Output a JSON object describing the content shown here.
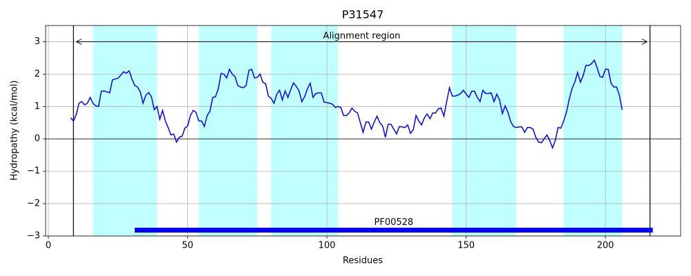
{
  "chart_data": {
    "type": "line",
    "title": "P31547",
    "xlabel": "Residues",
    "ylabel": "Hydropathy (kcal/mol)",
    "xlim": [
      -1,
      227
    ],
    "ylim": [
      -3,
      3.5
    ],
    "xticks": [
      0,
      50,
      100,
      150,
      200
    ],
    "yticks": [
      {
        "value": -3,
        "label": "−3"
      },
      {
        "value": -2,
        "label": "−2"
      },
      {
        "value": -1,
        "label": "−1"
      },
      0,
      1,
      2,
      3
    ],
    "grid": true,
    "regions": [
      [
        16,
        39
      ],
      [
        54,
        75
      ],
      [
        80,
        104
      ],
      [
        145,
        168
      ],
      [
        185,
        206
      ]
    ],
    "region_color": "#c0ffff",
    "vlines": [
      9,
      216
    ],
    "hline": 0,
    "arrow": {
      "label": "Alignment region",
      "x": [
        10,
        215
      ],
      "y": 3
    },
    "domain": {
      "label": "PF00528",
      "x": [
        31,
        217
      ],
      "y": -2.82,
      "color": "#0000ff"
    },
    "x": [
      8,
      9,
      10,
      11,
      12,
      13,
      14,
      15,
      16,
      17,
      18,
      19,
      20,
      21,
      22,
      23,
      24,
      25,
      26,
      27,
      28,
      29,
      30,
      31,
      32,
      33,
      34,
      35,
      36,
      37,
      38,
      39,
      40,
      41,
      42,
      43,
      44,
      45,
      46,
      47,
      48,
      49,
      50,
      51,
      52,
      53,
      54,
      55,
      56,
      57,
      58,
      59,
      60,
      61,
      62,
      63,
      64,
      65,
      66,
      67,
      68,
      69,
      70,
      71,
      72,
      73,
      74,
      75,
      76,
      77,
      78,
      79,
      80,
      81,
      82,
      83,
      84,
      85,
      86,
      87,
      88,
      89,
      90,
      91,
      92,
      93,
      94,
      95,
      96,
      97,
      98,
      99,
      100,
      101,
      102,
      103,
      104,
      105,
      106,
      107,
      108,
      109,
      110,
      111,
      112,
      113,
      114,
      115,
      116,
      117,
      118,
      119,
      120,
      121,
      122,
      123,
      124,
      125,
      126,
      127,
      128,
      129,
      130,
      131,
      132,
      133,
      134,
      135,
      136,
      137,
      138,
      139,
      140,
      141,
      142,
      143,
      144,
      145,
      146,
      147,
      148,
      149,
      150,
      151,
      152,
      153,
      154,
      155,
      156,
      157,
      158,
      159,
      160,
      161,
      162,
      163,
      164,
      165,
      166,
      167,
      168,
      169,
      170,
      171,
      172,
      173,
      174,
      175,
      176,
      177,
      178,
      179,
      180,
      181,
      182,
      183,
      184,
      185,
      186,
      187,
      188,
      189,
      190,
      191,
      192,
      193,
      194,
      195,
      196,
      197,
      198,
      199,
      200,
      201,
      202,
      203,
      204,
      205,
      206
    ],
    "series": [
      {
        "name": "Hydropathy",
        "color": "#0000ff",
        "values": [
          0.65,
          0.55,
          0.75,
          1.1,
          1.15,
          1.05,
          1.1,
          1.28,
          1.1,
          1.02,
          1.0,
          1.47,
          1.48,
          1.45,
          1.42,
          1.82,
          1.85,
          1.87,
          1.97,
          2.07,
          2.03,
          2.1,
          1.85,
          1.65,
          1.6,
          1.45,
          1.1,
          1.35,
          1.43,
          1.3,
          0.9,
          1.0,
          0.6,
          0.88,
          0.55,
          0.35,
          0.12,
          0.15,
          -0.1,
          0.05,
          0.08,
          0.33,
          0.4,
          0.72,
          0.88,
          0.82,
          0.55,
          0.55,
          0.38,
          0.72,
          0.85,
          1.28,
          1.3,
          1.55,
          2.02,
          2.0,
          1.88,
          2.15,
          2.0,
          1.92,
          1.65,
          1.6,
          1.58,
          1.65,
          2.12,
          2.15,
          1.88,
          1.9,
          2.0,
          1.75,
          1.7,
          1.32,
          1.25,
          1.1,
          1.38,
          1.5,
          1.2,
          1.48,
          1.28,
          1.52,
          1.73,
          1.62,
          1.48,
          1.15,
          1.3,
          1.55,
          1.72,
          1.28,
          1.4,
          1.42,
          1.42,
          1.13,
          1.12,
          1.1,
          1.07,
          0.97,
          1.0,
          0.97,
          0.72,
          0.72,
          0.8,
          0.95,
          0.85,
          0.8,
          0.5,
          0.2,
          0.52,
          0.52,
          0.3,
          0.52,
          0.7,
          0.5,
          0.4,
          0.05,
          0.45,
          0.45,
          0.3,
          0.15,
          0.38,
          0.37,
          0.35,
          0.43,
          0.17,
          0.28,
          0.72,
          0.55,
          0.43,
          0.65,
          0.77,
          0.62,
          0.8,
          0.8,
          0.93,
          0.95,
          0.7,
          1.15,
          1.58,
          1.32,
          1.32,
          1.35,
          1.4,
          1.5,
          1.38,
          1.28,
          1.47,
          1.47,
          1.28,
          1.15,
          1.5,
          1.4,
          1.4,
          1.42,
          1.15,
          1.38,
          1.2,
          0.78,
          1.02,
          0.82,
          0.53,
          0.38,
          0.35,
          0.37,
          0.37,
          0.2,
          0.35,
          0.35,
          0.3,
          0.05,
          -0.1,
          -0.12,
          0.0,
          0.12,
          -0.05,
          -0.28,
          -0.05,
          0.35,
          0.33,
          0.55,
          0.82,
          1.22,
          1.55,
          1.75,
          2.05,
          1.75,
          1.95,
          2.27,
          2.27,
          2.32,
          2.43,
          2.2,
          1.93,
          1.9,
          2.15,
          2.15,
          1.72,
          1.6,
          1.6,
          1.35,
          0.9
        ]
      }
    ]
  }
}
